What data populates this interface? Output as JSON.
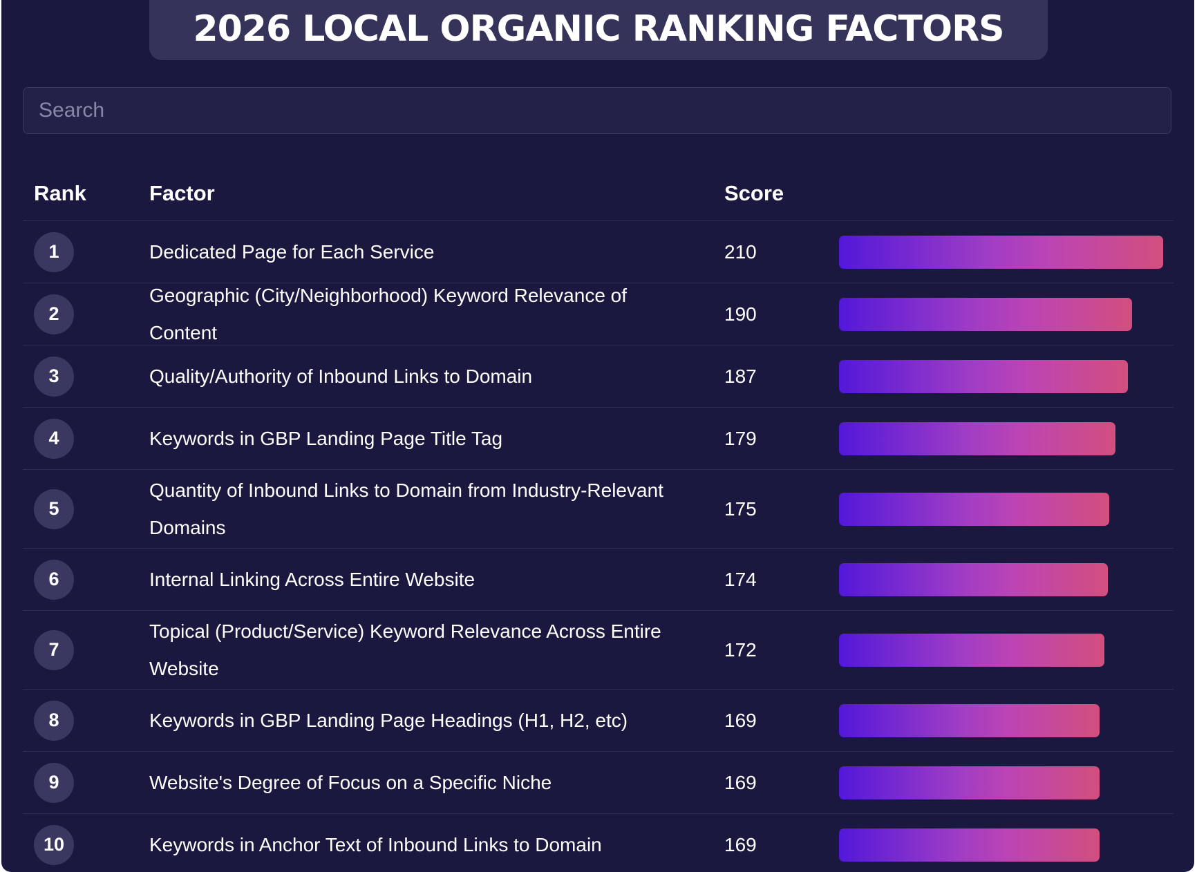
{
  "header": {
    "title": "2026 LOCAL ORGANIC RANKING FACTORS"
  },
  "search": {
    "placeholder": "Search",
    "value": ""
  },
  "table": {
    "columns": [
      "Rank",
      "Factor",
      "Score"
    ]
  },
  "colors": {
    "background": "#1b1840",
    "title_tab": "#35335a",
    "badge": "#3a3860",
    "bar_gradient_start": "#5318d9",
    "bar_gradient_mid": "#bc44b4",
    "bar_gradient_end": "#d24f7e"
  },
  "chart_data": {
    "type": "bar",
    "orientation": "horizontal",
    "title": "2026 LOCAL ORGANIC RANKING FACTORS",
    "xlim": [
      0,
      210
    ],
    "categories": [
      "Dedicated Page for Each Service",
      "Geographic (City/Neighborhood) Keyword Relevance of Content",
      "Quality/Authority of Inbound Links to Domain",
      "Keywords in GBP Landing Page Title Tag",
      "Quantity of Inbound Links to Domain from Industry-Relevant Domains",
      "Internal Linking Across Entire Website",
      "Topical (Product/Service) Keyword Relevance Across Entire Website",
      "Keywords in GBP Landing Page Headings (H1, H2, etc)",
      "Website's Degree of Focus on a Specific Niche",
      "Keywords in Anchor Text of Inbound Links to Domain"
    ],
    "rows": [
      {
        "rank": "1",
        "factor": "Dedicated Page for Each Service",
        "score": 210
      },
      {
        "rank": "2",
        "factor": "Geographic (City/Neighborhood) Keyword Relevance of Content",
        "score": 190
      },
      {
        "rank": "3",
        "factor": "Quality/Authority of Inbound Links to Domain",
        "score": 187
      },
      {
        "rank": "4",
        "factor": "Keywords in GBP Landing Page Title Tag",
        "score": 179
      },
      {
        "rank": "5",
        "factor": "Quantity of Inbound Links to Domain from Industry-Relevant Domains",
        "score": 175
      },
      {
        "rank": "6",
        "factor": "Internal Linking Across Entire Website",
        "score": 174
      },
      {
        "rank": "7",
        "factor": "Topical (Product/Service) Keyword Relevance Across Entire Website",
        "score": 172
      },
      {
        "rank": "8",
        "factor": "Keywords in GBP Landing Page Headings (H1, H2, etc)",
        "score": 169
      },
      {
        "rank": "9",
        "factor": "Website's Degree of Focus on a Specific Niche",
        "score": 169
      },
      {
        "rank": "10",
        "factor": "Keywords in Anchor Text of Inbound Links to Domain",
        "score": 169
      }
    ]
  }
}
